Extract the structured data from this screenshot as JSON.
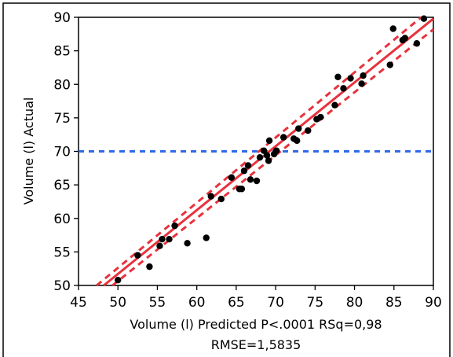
{
  "chart_data": {
    "type": "scatter",
    "xlabel": "Volume (l) Predicted P<.0001 RSq=0,98",
    "caption": "RMSE=1,5835",
    "ylabel": "Volume (l) Actual",
    "xlim": [
      45,
      90
    ],
    "ylim": [
      50,
      90
    ],
    "xticks": [
      45,
      50,
      55,
      60,
      65,
      70,
      75,
      80,
      85,
      90
    ],
    "yticks": [
      50,
      55,
      60,
      65,
      70,
      75,
      80,
      85,
      90
    ],
    "grid": false,
    "reference_line_y": 70,
    "fit_line": [
      [
        48.2,
        50
      ],
      [
        90,
        89.8
      ]
    ],
    "upper_confidence": [
      [
        47.3,
        50
      ],
      [
        90,
        91.5
      ]
    ],
    "lower_confidence": [
      [
        49.3,
        50
      ],
      [
        90,
        88.2
      ]
    ],
    "points": [
      [
        50.0,
        50.8
      ],
      [
        52.5,
        54.5
      ],
      [
        54.0,
        52.8
      ],
      [
        55.3,
        55.9
      ],
      [
        55.6,
        56.9
      ],
      [
        56.5,
        56.9
      ],
      [
        57.2,
        58.9
      ],
      [
        58.8,
        56.3
      ],
      [
        61.2,
        57.1
      ],
      [
        61.8,
        63.3
      ],
      [
        63.1,
        62.9
      ],
      [
        64.4,
        66.1
      ],
      [
        65.4,
        64.4
      ],
      [
        65.7,
        64.4
      ],
      [
        66.0,
        67.1
      ],
      [
        66.5,
        67.9
      ],
      [
        66.8,
        65.8
      ],
      [
        67.6,
        65.6
      ],
      [
        68.0,
        69.1
      ],
      [
        68.5,
        70.1
      ],
      [
        68.9,
        69.4
      ],
      [
        69.1,
        68.6
      ],
      [
        69.2,
        71.6
      ],
      [
        69.8,
        69.6
      ],
      [
        70.1,
        70.1
      ],
      [
        71.0,
        72.1
      ],
      [
        72.3,
        71.9
      ],
      [
        72.7,
        71.6
      ],
      [
        72.9,
        73.4
      ],
      [
        74.1,
        73.1
      ],
      [
        75.2,
        74.8
      ],
      [
        75.7,
        75.1
      ],
      [
        77.5,
        76.9
      ],
      [
        77.9,
        81.1
      ],
      [
        78.6,
        79.4
      ],
      [
        79.5,
        80.9
      ],
      [
        80.9,
        80.1
      ],
      [
        81.1,
        81.3
      ],
      [
        84.5,
        82.9
      ],
      [
        84.9,
        88.3
      ],
      [
        86.1,
        86.6
      ],
      [
        86.4,
        86.9
      ],
      [
        87.9,
        86.1
      ],
      [
        88.8,
        89.8
      ]
    ],
    "colors": {
      "fit": "#e8323c",
      "reference": "#2f6ae8",
      "points": "#000000"
    }
  }
}
